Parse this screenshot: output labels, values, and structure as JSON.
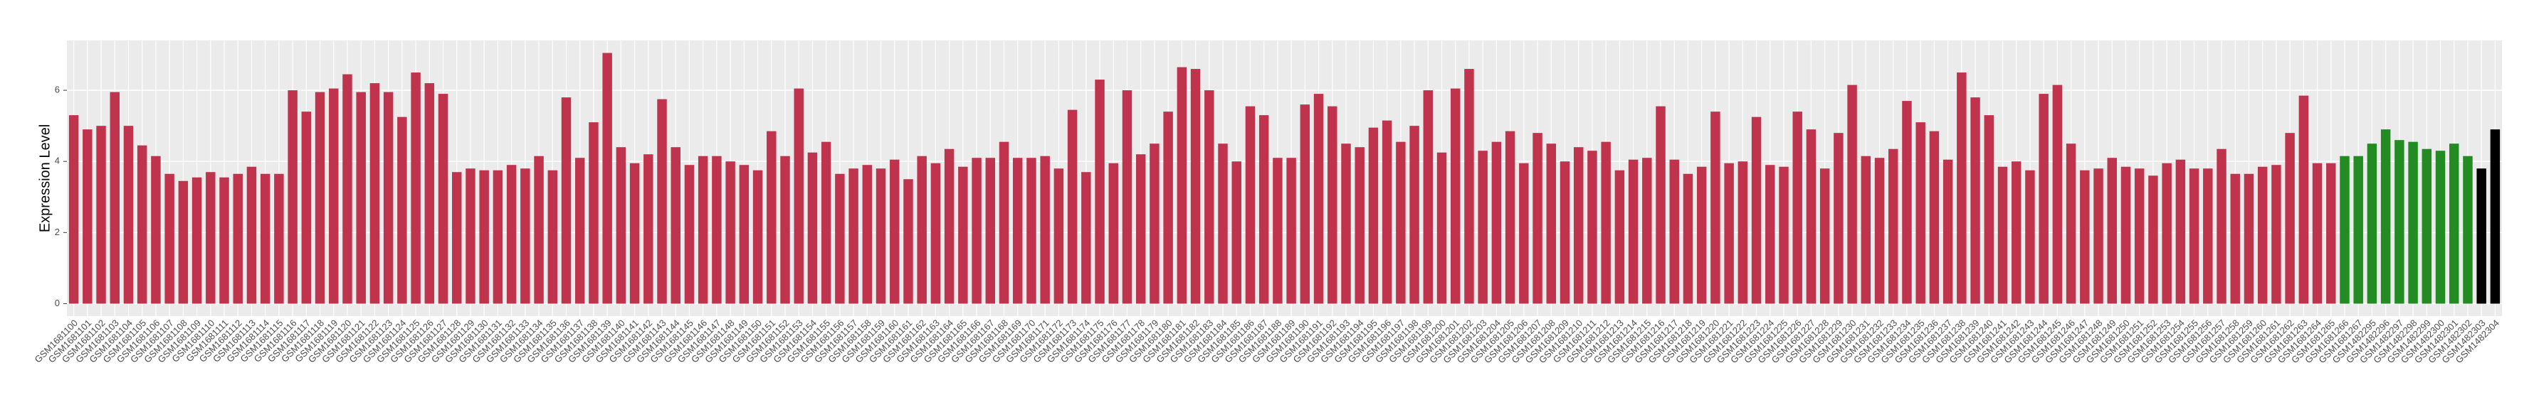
{
  "chart_data": {
    "type": "bar",
    "y_label": "Expression Level",
    "categories": [
      "GSM1681100",
      "GSM1681101",
      "GSM1681102",
      "GSM1681103",
      "GSM1681104",
      "GSM1681105",
      "GSM1681106",
      "GSM1681107",
      "GSM1681108",
      "GSM1681109",
      "GSM1681110",
      "GSM1681111",
      "GSM1681112",
      "GSM1681113",
      "GSM1681114",
      "GSM1681115",
      "GSM1681116",
      "GSM1681117",
      "GSM1681118",
      "GSM1681119",
      "GSM1681120",
      "GSM1681121",
      "GSM1681122",
      "GSM1681123",
      "GSM1681124",
      "GSM1681125",
      "GSM1681126",
      "GSM1681127",
      "GSM1681128",
      "GSM1681129",
      "GSM1681130",
      "GSM1681131",
      "GSM1681132",
      "GSM1681133",
      "GSM1681134",
      "GSM1681135",
      "GSM1681136",
      "GSM1681137",
      "GSM1681138",
      "GSM1681139",
      "GSM1681140",
      "GSM1681141",
      "GSM1681142",
      "GSM1681143",
      "GSM1681144",
      "GSM1681145",
      "GSM1681146",
      "GSM1681147",
      "GSM1681148",
      "GSM1681149",
      "GSM1681150",
      "GSM1681151",
      "GSM1681152",
      "GSM1681153",
      "GSM1681154",
      "GSM1681155",
      "GSM1681156",
      "GSM1681157",
      "GSM1681158",
      "GSM1681159",
      "GSM1681160",
      "GSM1681161",
      "GSM1681162",
      "GSM1681163",
      "GSM1681164",
      "GSM1681165",
      "GSM1681166",
      "GSM1681167",
      "GSM1681168",
      "GSM1681169",
      "GSM1681170",
      "GSM1681171",
      "GSM1681172",
      "GSM1681173",
      "GSM1681174",
      "GSM1681175",
      "GSM1681176",
      "GSM1681177",
      "GSM1681178",
      "GSM1681179",
      "GSM1681180",
      "GSM1681181",
      "GSM1681182",
      "GSM1681183",
      "GSM1681184",
      "GSM1681185",
      "GSM1681186",
      "GSM1681187",
      "GSM1681188",
      "GSM1681189",
      "GSM1681190",
      "GSM1681191",
      "GSM1681192",
      "GSM1681193",
      "GSM1681194",
      "GSM1681195",
      "GSM1681196",
      "GSM1681197",
      "GSM1681198",
      "GSM1681199",
      "GSM1681200",
      "GSM1681201",
      "GSM1681202",
      "GSM1681203",
      "GSM1681204",
      "GSM1681205",
      "GSM1681206",
      "GSM1681207",
      "GSM1681208",
      "GSM1681209",
      "GSM1681210",
      "GSM1681211",
      "GSM1681212",
      "GSM1681213",
      "GSM1681214",
      "GSM1681215",
      "GSM1681216",
      "GSM1681217",
      "GSM1681218",
      "GSM1681219",
      "GSM1681220",
      "GSM1681221",
      "GSM1681222",
      "GSM1681223",
      "GSM1681224",
      "GSM1681225",
      "GSM1681226",
      "GSM1681227",
      "GSM1681228",
      "GSM1681229",
      "GSM1681230",
      "GSM1681231",
      "GSM1681232",
      "GSM1681233",
      "GSM1681234",
      "GSM1681235",
      "GSM1681236",
      "GSM1681237",
      "GSM1681238",
      "GSM1681239",
      "GSM1681240",
      "GSM1681241",
      "GSM1681242",
      "GSM1681243",
      "GSM1681244",
      "GSM1681245",
      "GSM1681246",
      "GSM1681247",
      "GSM1681248",
      "GSM1681249",
      "GSM1681250",
      "GSM1681251",
      "GSM1681252",
      "GSM1681253",
      "GSM1681254",
      "GSM1681255",
      "GSM1681256",
      "GSM1681257",
      "GSM1681258",
      "GSM1681259",
      "GSM1681260",
      "GSM1681261",
      "GSM1681262",
      "GSM1681263",
      "GSM1681264",
      "GSM1681265",
      "GSM1681266",
      "GSM1681267",
      "GSM1482295",
      "GSM1482296",
      "GSM1482297",
      "GSM1482298",
      "GSM1482299",
      "GSM1482300",
      "GSM1482301",
      "GSM1482302",
      "GSM1482303",
      "GSM1482304"
    ],
    "values": [
      5.3,
      4.9,
      5.0,
      5.95,
      5.0,
      4.45,
      4.15,
      3.65,
      3.45,
      3.55,
      3.7,
      3.55,
      3.65,
      3.85,
      3.65,
      3.65,
      6.0,
      5.4,
      5.95,
      6.05,
      6.45,
      5.95,
      6.2,
      5.95,
      5.25,
      6.5,
      6.2,
      5.9,
      3.7,
      3.8,
      3.75,
      3.75,
      3.9,
      3.8,
      4.15,
      3.75,
      5.8,
      4.1,
      5.1,
      7.05,
      4.4,
      3.95,
      4.2,
      5.75,
      4.4,
      3.9,
      4.15,
      4.15,
      4.0,
      3.9,
      3.75,
      4.85,
      4.15,
      6.05,
      4.25,
      4.55,
      3.65,
      3.8,
      3.9,
      3.8,
      4.05,
      3.5,
      4.15,
      3.95,
      4.35,
      3.85,
      4.1,
      4.1,
      4.55,
      4.1,
      4.1,
      4.15,
      3.8,
      5.45,
      3.7,
      6.3,
      3.95,
      6.0,
      4.2,
      4.5,
      5.4,
      6.65,
      6.6,
      6.0,
      4.5,
      4.0,
      5.55,
      5.3,
      4.1,
      4.1,
      5.6,
      5.9,
      5.55,
      4.5,
      4.4,
      4.95,
      5.15,
      4.55,
      5.0,
      6.0,
      4.25,
      6.05,
      6.6,
      4.3,
      4.55,
      4.85,
      3.95,
      4.8,
      4.5,
      4.0,
      4.4,
      4.3,
      4.55,
      3.75,
      4.05,
      4.1,
      5.55,
      4.05,
      3.65,
      3.85,
      5.4,
      3.95,
      4.0,
      5.25,
      3.9,
      3.85,
      5.4,
      4.9,
      3.8,
      4.8,
      6.15,
      4.15,
      4.1,
      4.35,
      5.7,
      5.1,
      4.85,
      4.05,
      6.5,
      5.8,
      5.3,
      3.85,
      4.0,
      3.75,
      5.9,
      6.15,
      4.5,
      3.75,
      3.8,
      4.1,
      3.85,
      3.8,
      3.6,
      3.95,
      4.05,
      3.8,
      3.8,
      4.35,
      3.65,
      3.65,
      3.85,
      3.9,
      4.8,
      5.85,
      3.95,
      3.95,
      4.15,
      4.15,
      4.5,
      4.9,
      4.6,
      4.55,
      4.35,
      4.3,
      4.5,
      4.15,
      3.8,
      4.9
    ],
    "colors": [
      "#c0334d",
      "#c0334d",
      "#c0334d",
      "#c0334d",
      "#c0334d",
      "#c0334d",
      "#c0334d",
      "#c0334d",
      "#c0334d",
      "#c0334d",
      "#c0334d",
      "#c0334d",
      "#c0334d",
      "#c0334d",
      "#c0334d",
      "#c0334d",
      "#c0334d",
      "#c0334d",
      "#c0334d",
      "#c0334d",
      "#c0334d",
      "#c0334d",
      "#c0334d",
      "#c0334d",
      "#c0334d",
      "#c0334d",
      "#c0334d",
      "#c0334d",
      "#c0334d",
      "#c0334d",
      "#c0334d",
      "#c0334d",
      "#c0334d",
      "#c0334d",
      "#c0334d",
      "#c0334d",
      "#c0334d",
      "#c0334d",
      "#c0334d",
      "#c0334d",
      "#c0334d",
      "#c0334d",
      "#c0334d",
      "#c0334d",
      "#c0334d",
      "#c0334d",
      "#c0334d",
      "#c0334d",
      "#c0334d",
      "#c0334d",
      "#c0334d",
      "#c0334d",
      "#c0334d",
      "#c0334d",
      "#c0334d",
      "#c0334d",
      "#c0334d",
      "#c0334d",
      "#c0334d",
      "#c0334d",
      "#c0334d",
      "#c0334d",
      "#c0334d",
      "#c0334d",
      "#c0334d",
      "#c0334d",
      "#c0334d",
      "#c0334d",
      "#c0334d",
      "#c0334d",
      "#c0334d",
      "#c0334d",
      "#c0334d",
      "#c0334d",
      "#c0334d",
      "#c0334d",
      "#c0334d",
      "#c0334d",
      "#c0334d",
      "#c0334d",
      "#c0334d",
      "#c0334d",
      "#c0334d",
      "#c0334d",
      "#c0334d",
      "#c0334d",
      "#c0334d",
      "#c0334d",
      "#c0334d",
      "#c0334d",
      "#c0334d",
      "#c0334d",
      "#c0334d",
      "#c0334d",
      "#c0334d",
      "#c0334d",
      "#c0334d",
      "#c0334d",
      "#c0334d",
      "#c0334d",
      "#c0334d",
      "#c0334d",
      "#c0334d",
      "#c0334d",
      "#c0334d",
      "#c0334d",
      "#c0334d",
      "#c0334d",
      "#c0334d",
      "#c0334d",
      "#c0334d",
      "#c0334d",
      "#c0334d",
      "#c0334d",
      "#c0334d",
      "#c0334d",
      "#c0334d",
      "#c0334d",
      "#c0334d",
      "#c0334d",
      "#c0334d",
      "#c0334d",
      "#c0334d",
      "#c0334d",
      "#c0334d",
      "#c0334d",
      "#c0334d",
      "#c0334d",
      "#c0334d",
      "#c0334d",
      "#c0334d",
      "#c0334d",
      "#c0334d",
      "#c0334d",
      "#c0334d",
      "#c0334d",
      "#c0334d",
      "#c0334d",
      "#c0334d",
      "#c0334d",
      "#c0334d",
      "#c0334d",
      "#c0334d",
      "#c0334d",
      "#c0334d",
      "#c0334d",
      "#c0334d",
      "#c0334d",
      "#c0334d",
      "#c0334d",
      "#c0334d",
      "#c0334d",
      "#c0334d",
      "#c0334d",
      "#c0334d",
      "#c0334d",
      "#c0334d",
      "#c0334d",
      "#c0334d",
      "#c0334d",
      "#c0334d",
      "#c0334d",
      "#c0334d",
      "#c0334d",
      "#c0334d",
      "#c0334d",
      "#228b22",
      "#228b22",
      "#228b22",
      "#228b22",
      "#228b22",
      "#228b22",
      "#228b22",
      "#228b22",
      "#228b22",
      "#228b22"
    ],
    "ylim": [
      -0.35,
      7.4
    ],
    "yticks": [
      0,
      2,
      4,
      6
    ],
    "grid": true
  }
}
